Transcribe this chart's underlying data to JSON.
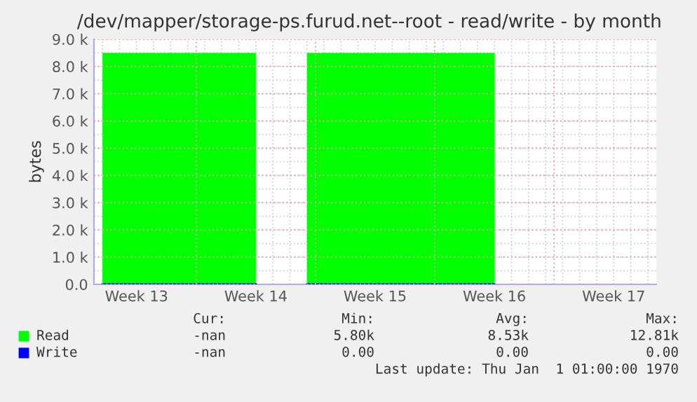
{
  "chart_data": {
    "type": "area",
    "title": "/dev/mapper/storage-ps.furud.net--root - read/write - by month",
    "ylabel": "bytes",
    "categories": [
      null,
      null,
      "Week 13",
      null,
      null,
      null,
      null,
      null,
      null,
      "Week 14",
      null,
      null,
      null,
      null,
      null,
      null,
      "Week 15",
      null,
      null,
      null,
      null,
      null,
      null,
      "Week 16",
      null,
      null,
      null,
      null,
      null,
      null,
      "Week 17",
      null,
      null
    ],
    "series": [
      {
        "name": "Read",
        "color": "#00ff00",
        "values": [
          8500,
          8500,
          8500,
          8500,
          8500,
          8500,
          8500,
          8500,
          8500,
          8500,
          null,
          null,
          8500,
          8500,
          8500,
          8500,
          8500,
          8500,
          8500,
          8500,
          8500,
          8500,
          8500,
          8500,
          null,
          null,
          null,
          null,
          null,
          null,
          null,
          null,
          null
        ]
      },
      {
        "name": "Write",
        "color": "#0000ff",
        "type": "line",
        "values": [
          0,
          0,
          0,
          0,
          0,
          0,
          0,
          0,
          0,
          0,
          null,
          null,
          0,
          0,
          0,
          0,
          0,
          0,
          0,
          0,
          0,
          0,
          0,
          0,
          null,
          null,
          null,
          null,
          null,
          null,
          null,
          null,
          null
        ]
      }
    ],
    "ylim": [
      0,
      9000
    ],
    "yticks": [
      {
        "value": 0,
        "label": "0.0"
      },
      {
        "value": 1000,
        "label": "1.0 k"
      },
      {
        "value": 2000,
        "label": "2.0 k"
      },
      {
        "value": 3000,
        "label": "3.0 k"
      },
      {
        "value": 4000,
        "label": "4.0 k"
      },
      {
        "value": 5000,
        "label": "5.0 k"
      },
      {
        "value": 6000,
        "label": "6.0 k"
      },
      {
        "value": 7000,
        "label": "7.0 k"
      },
      {
        "value": 8000,
        "label": "8.0 k"
      },
      {
        "value": 9000,
        "label": "9.0 k"
      }
    ],
    "grid": true,
    "legend": "bottom left",
    "annotations": [
      "Cur:",
      "Min:",
      "Avg:",
      "Max:",
      "-nan",
      "5.80k",
      "8.53k",
      "12.81k",
      "-nan",
      "0.00",
      "0.00",
      "0.00",
      "Last update: Thu Jan  1 01:00:00 1970"
    ]
  }
}
